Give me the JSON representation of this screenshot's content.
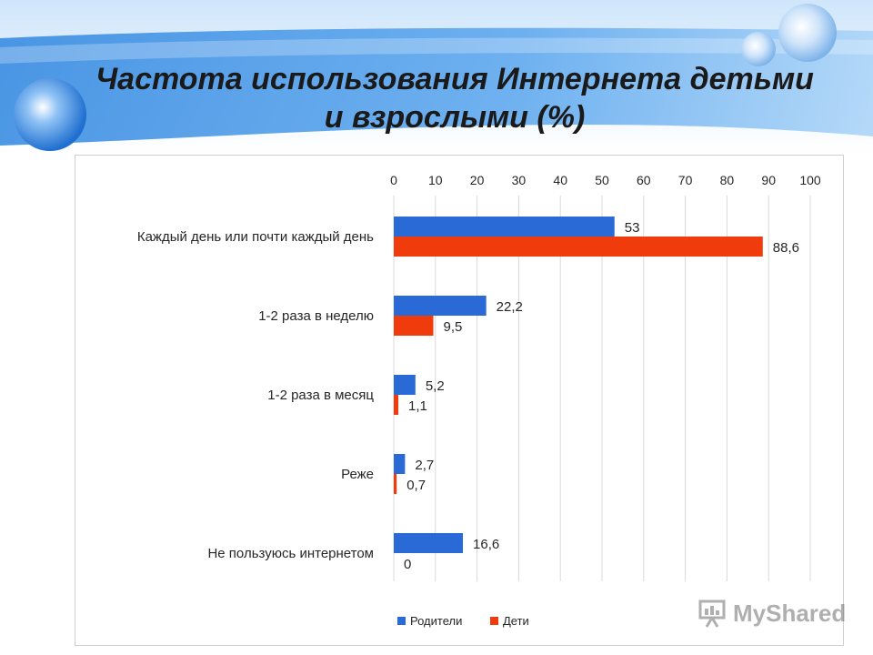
{
  "slide": {
    "title": "Частота использования Интернета детьми и взрослыми (%)",
    "watermark": "MyShared"
  },
  "colors": {
    "parents": "#2a6ad6",
    "children": "#f03c0c",
    "grid": "#d9d9d9",
    "text": "#262626",
    "header_blue": "#4a90d9"
  },
  "chart_data": {
    "type": "bar",
    "orientation": "horizontal",
    "categories": [
      "Каждый день или почти каждый день",
      "1-2 раза в неделю",
      "1-2 раза в месяц",
      "Реже",
      "Не пользуюсь интернетом"
    ],
    "series": [
      {
        "name": "Родители",
        "values": [
          53,
          22.2,
          5.2,
          2.7,
          16.6
        ],
        "labels": [
          "53",
          "22,2",
          "5,2",
          "2,7",
          "16,6"
        ]
      },
      {
        "name": "Дети",
        "values": [
          88.6,
          9.5,
          1.1,
          0.7,
          0
        ],
        "labels": [
          "88,6",
          "9,5",
          "1,1",
          "0,7",
          "0"
        ]
      }
    ],
    "x_ticks": [
      0,
      10,
      20,
      30,
      40,
      50,
      60,
      70,
      80,
      90,
      100
    ],
    "xlim": [
      0,
      100
    ],
    "x_axis_position": "top",
    "grid": true,
    "legend_position": "bottom"
  }
}
